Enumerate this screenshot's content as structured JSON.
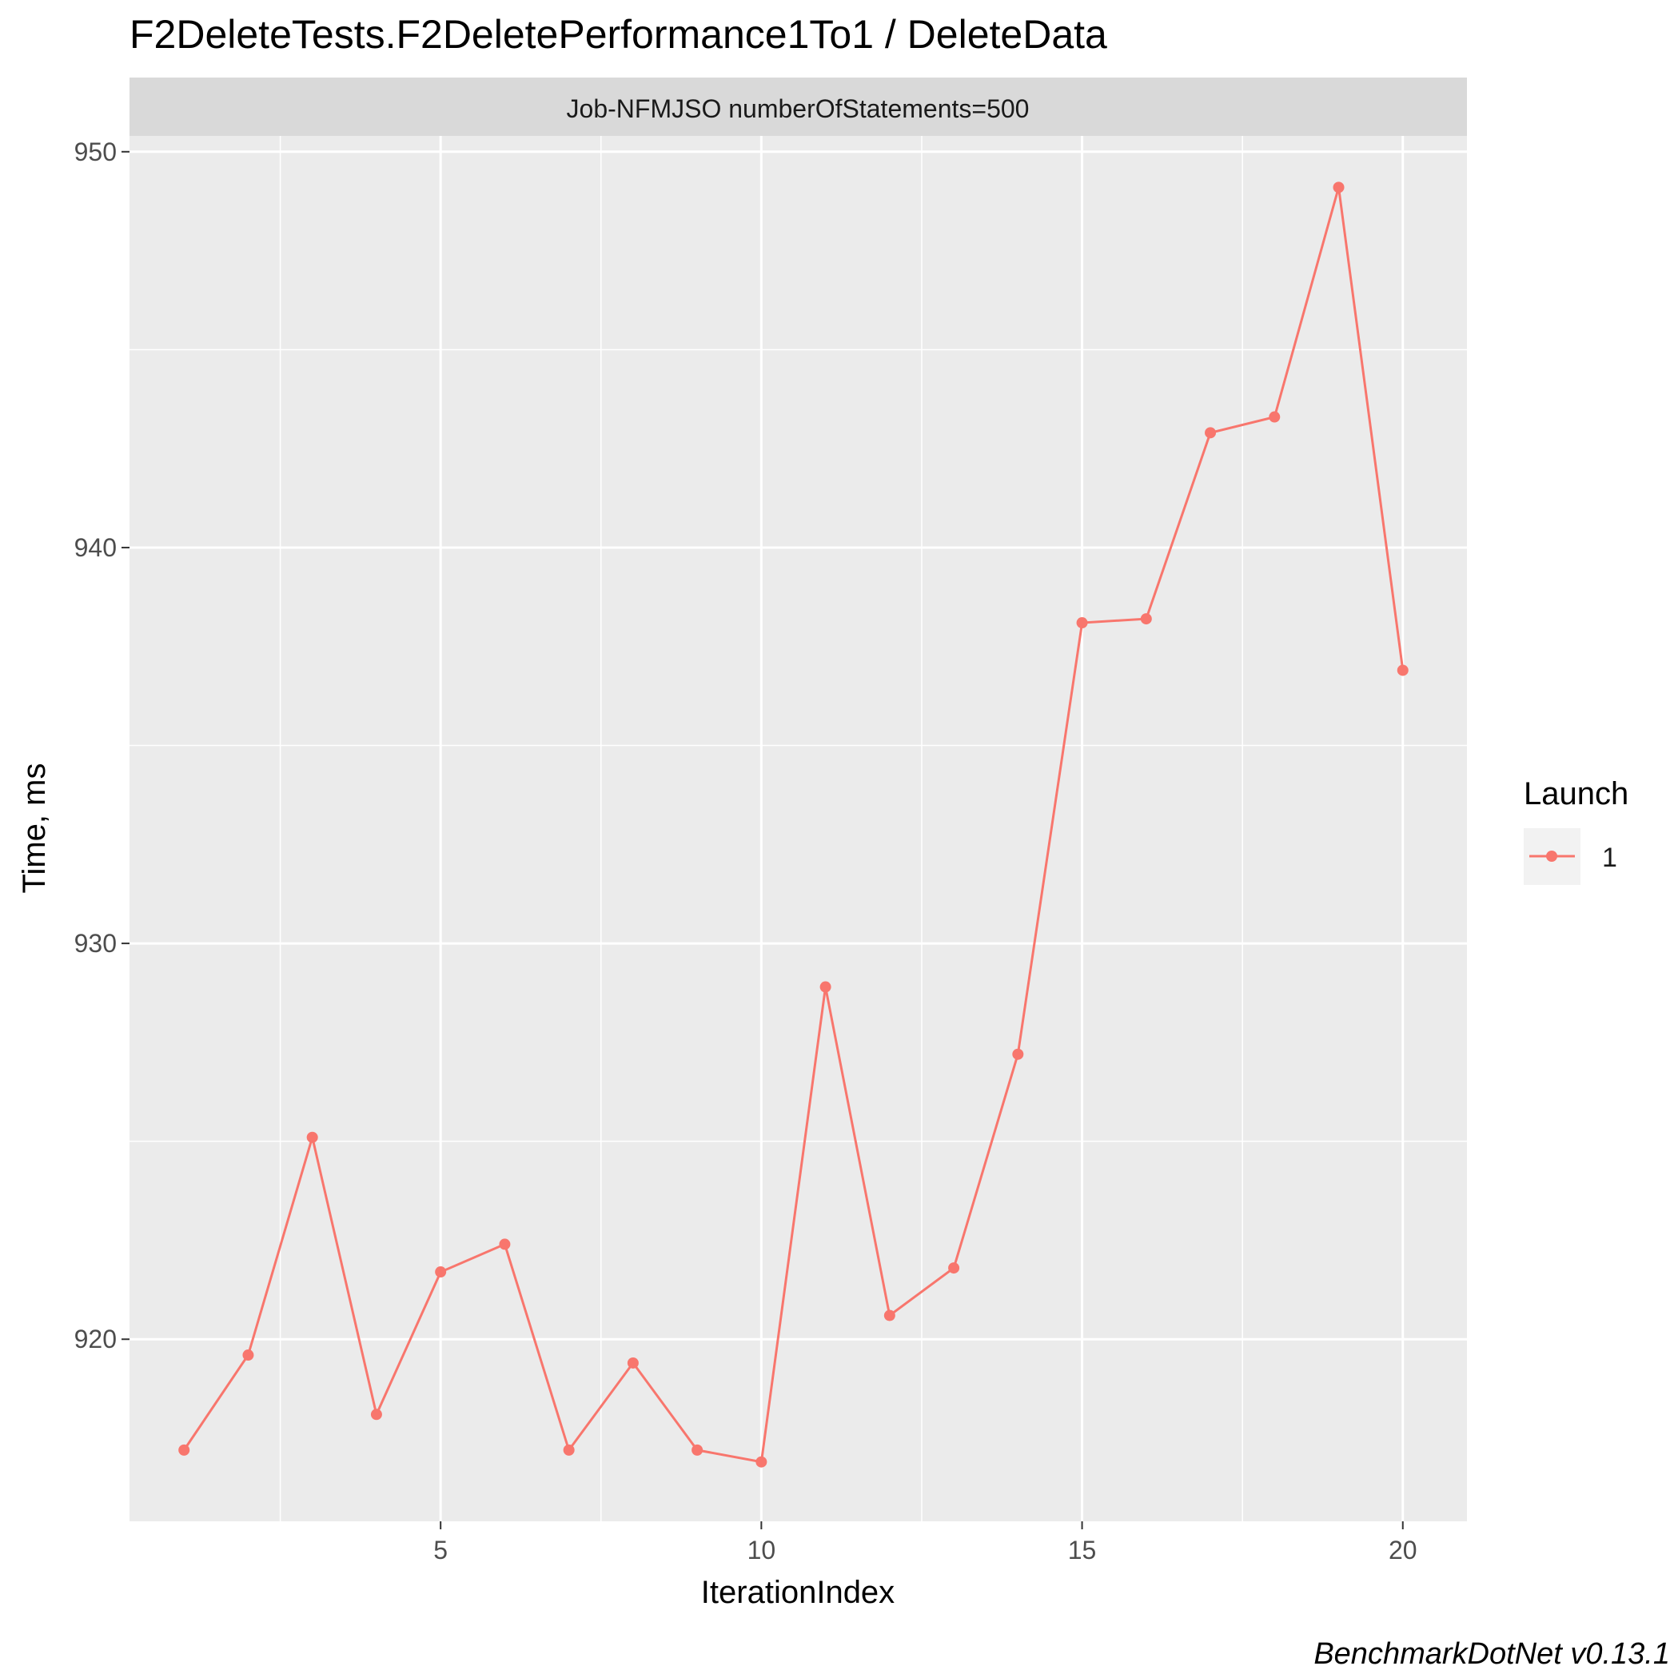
{
  "title": "F2DeleteTests.F2DeletePerformance1To1 / DeleteData",
  "caption": "BenchmarkDotNet v0.13.1",
  "chart_data": {
    "type": "line",
    "title": "F2DeleteTests.F2DeletePerformance1To1 / DeleteData",
    "facet_label": "Job-NFMJSO numberOfStatements=500",
    "xlabel": "IterationIndex",
    "ylabel": "Time, ms",
    "xlim": [
      0.15,
      21.0
    ],
    "ylim": [
      915.4,
      950.4
    ],
    "x_ticks": [
      5,
      10,
      15,
      20
    ],
    "y_ticks": [
      920,
      930,
      940,
      950
    ],
    "grid": true,
    "legend": {
      "title": "Launch",
      "position": "right"
    },
    "series": [
      {
        "name": "1",
        "color": "#F8766D",
        "x": [
          1,
          2,
          3,
          4,
          5,
          6,
          7,
          8,
          9,
          10,
          11,
          12,
          13,
          14,
          15,
          16,
          17,
          18,
          19,
          20
        ],
        "values": [
          917.2,
          919.6,
          925.1,
          918.1,
          921.7,
          922.4,
          917.2,
          919.4,
          917.2,
          916.9,
          928.9,
          920.6,
          921.8,
          927.2,
          938.1,
          938.2,
          942.9,
          943.3,
          949.1,
          936.9
        ]
      }
    ]
  }
}
